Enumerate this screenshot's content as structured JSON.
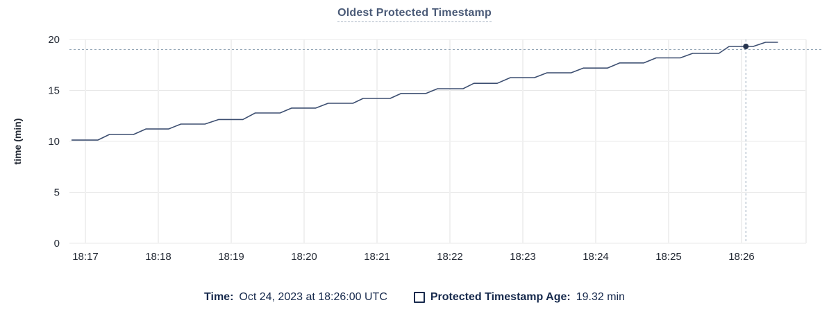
{
  "header": {
    "title": "Oldest Protected Timestamp"
  },
  "colors": {
    "line": "#3d4f71",
    "dot": "#26344f",
    "grid_h": "#e8e8e8",
    "grid_v": "#f0f0f0",
    "crosshair": "#93a5b6",
    "title": "#4a5a77",
    "tick_text": "#242a35",
    "footer_text": "#16294c"
  },
  "chart_data": {
    "type": "line",
    "title": "Oldest Protected Timestamp",
    "xlabel": "",
    "ylabel": "time (min)",
    "ylim": [
      0,
      20
    ],
    "yticks": [
      0,
      5,
      10,
      15,
      20
    ],
    "grid": true,
    "legend_position": "bottom",
    "x_unit": "minutes after 18:00 UTC on Oct 24, 2023",
    "xticks": [
      {
        "minutes": 17,
        "label": "18:17"
      },
      {
        "minutes": 18,
        "label": "18:18"
      },
      {
        "minutes": 19,
        "label": "18:19"
      },
      {
        "minutes": 20,
        "label": "18:20"
      },
      {
        "minutes": 21,
        "label": "18:21"
      },
      {
        "minutes": 22,
        "label": "18:22"
      },
      {
        "minutes": 23,
        "label": "18:23"
      },
      {
        "minutes": 24,
        "label": "18:24"
      },
      {
        "minutes": 25,
        "label": "18:25"
      },
      {
        "minutes": 26,
        "label": "18:26"
      }
    ],
    "series": [
      {
        "name": "Protected Timestamp Age",
        "unit": "min",
        "color": "#3d4f71",
        "points": [
          [
            16.81,
            10.13
          ],
          [
            17.17,
            10.13
          ],
          [
            17.33,
            10.68
          ],
          [
            17.66,
            10.68
          ],
          [
            17.83,
            11.22
          ],
          [
            18.14,
            11.22
          ],
          [
            18.31,
            11.7
          ],
          [
            18.64,
            11.7
          ],
          [
            18.83,
            12.15
          ],
          [
            19.16,
            12.15
          ],
          [
            19.33,
            12.79
          ],
          [
            19.67,
            12.79
          ],
          [
            19.83,
            13.27
          ],
          [
            20.16,
            13.27
          ],
          [
            20.33,
            13.74
          ],
          [
            20.67,
            13.74
          ],
          [
            20.81,
            14.22
          ],
          [
            21.18,
            14.22
          ],
          [
            21.33,
            14.7
          ],
          [
            21.67,
            14.7
          ],
          [
            21.83,
            15.17
          ],
          [
            22.18,
            15.17
          ],
          [
            22.33,
            15.7
          ],
          [
            22.65,
            15.7
          ],
          [
            22.83,
            16.26
          ],
          [
            23.16,
            16.26
          ],
          [
            23.33,
            16.73
          ],
          [
            23.66,
            16.73
          ],
          [
            23.83,
            17.2
          ],
          [
            24.16,
            17.2
          ],
          [
            24.33,
            17.7
          ],
          [
            24.66,
            17.7
          ],
          [
            24.83,
            18.2
          ],
          [
            25.16,
            18.2
          ],
          [
            25.33,
            18.64
          ],
          [
            25.69,
            18.64
          ],
          [
            25.83,
            19.32
          ],
          [
            26.16,
            19.32
          ],
          [
            26.33,
            19.73
          ],
          [
            26.5,
            19.73
          ]
        ]
      }
    ],
    "hover": {
      "minutes": 26.06,
      "value": 19.32,
      "time_text": "Oct 24, 2023 at 18:26:00 UTC",
      "value_text": "19.32 min"
    }
  },
  "footer": {
    "time_label": "Time:",
    "series_label": "Protected Timestamp Age:"
  }
}
